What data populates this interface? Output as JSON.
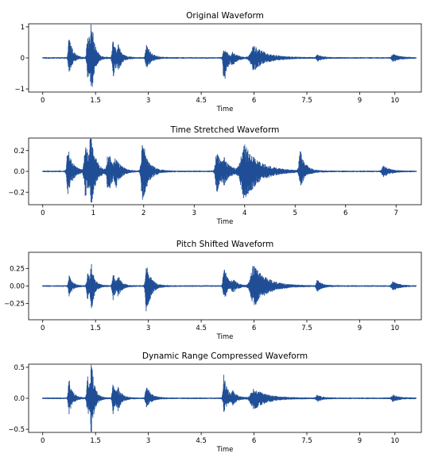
{
  "chart_data": [
    {
      "type": "line",
      "title": "Original Waveform",
      "xlabel": "Time",
      "ylabel": "",
      "xlim": [
        -0.4,
        10.75
      ],
      "ylim": [
        -1.1,
        1.1
      ],
      "xticks": [
        0,
        1.5,
        3,
        4.5,
        6,
        7.5,
        9,
        10
      ],
      "xtick_labels": [
        "0",
        "1.5",
        "3",
        "4.5",
        "6",
        "7.5",
        "9",
        "10"
      ],
      "yticks": [
        1,
        0,
        -1
      ],
      "ytick_labels": [
        "1",
        "0",
        "−1"
      ],
      "grid": false,
      "series": [
        {
          "color": "#1f4e96",
          "duration": 10.6,
          "envelope": [
            {
              "t": 0.75,
              "pos": 0.75,
              "neg": 0.55,
              "w": 0.06
            },
            {
              "t": 1.28,
              "pos": 0.95,
              "neg": 0.75,
              "w": 0.07
            },
            {
              "t": 1.38,
              "pos": 1.0,
              "neg": 1.0,
              "w": 0.05
            },
            {
              "t": 2.0,
              "pos": 0.55,
              "neg": 0.65,
              "w": 0.07
            },
            {
              "t": 2.15,
              "pos": 0.3,
              "neg": 0.25,
              "w": 0.06
            },
            {
              "t": 2.95,
              "pos": 0.45,
              "neg": 0.35,
              "w": 0.08
            },
            {
              "t": 5.15,
              "pos": 0.35,
              "neg": 0.85,
              "w": 0.07
            },
            {
              "t": 5.4,
              "pos": 0.15,
              "neg": 0.15,
              "w": 0.08
            },
            {
              "t": 6.0,
              "pos": 0.4,
              "neg": 0.4,
              "w": 0.22
            },
            {
              "t": 7.8,
              "pos": 0.1,
              "neg": 0.1,
              "w": 0.08
            },
            {
              "t": 9.95,
              "pos": 0.12,
              "neg": 0.12,
              "w": 0.1
            }
          ]
        }
      ]
    },
    {
      "type": "line",
      "title": "Time Stretched Waveform",
      "xlabel": "Time",
      "ylabel": "",
      "xlim": [
        -0.28,
        7.5
      ],
      "ylim": [
        -0.32,
        0.32
      ],
      "xticks": [
        0,
        1,
        2,
        3,
        4,
        5,
        6,
        7
      ],
      "xtick_labels": [
        "0",
        "1",
        "2",
        "3",
        "4",
        "5",
        "6",
        "7"
      ],
      "yticks": [
        0.2,
        0.0,
        -0.2
      ],
      "ytick_labels": [
        "0.2",
        "0.0",
        "−0.2"
      ],
      "grid": false,
      "series": [
        {
          "color": "#1f4e96",
          "duration": 7.4,
          "envelope": [
            {
              "t": 0.5,
              "pos": 0.22,
              "neg": 0.22,
              "w": 0.06
            },
            {
              "t": 0.85,
              "pos": 0.25,
              "neg": 0.25,
              "w": 0.07
            },
            {
              "t": 0.95,
              "pos": 0.3,
              "neg": 0.28,
              "w": 0.05
            },
            {
              "t": 1.3,
              "pos": 0.18,
              "neg": 0.2,
              "w": 0.07
            },
            {
              "t": 1.45,
              "pos": 0.1,
              "neg": 0.1,
              "w": 0.06
            },
            {
              "t": 1.98,
              "pos": 0.3,
              "neg": 0.3,
              "w": 0.07
            },
            {
              "t": 3.45,
              "pos": 0.2,
              "neg": 0.2,
              "w": 0.07
            },
            {
              "t": 3.6,
              "pos": 0.08,
              "neg": 0.08,
              "w": 0.08
            },
            {
              "t": 4.0,
              "pos": 0.25,
              "neg": 0.28,
              "w": 0.18
            },
            {
              "t": 5.1,
              "pos": 0.2,
              "neg": 0.15,
              "w": 0.06
            },
            {
              "t": 6.75,
              "pos": 0.05,
              "neg": 0.05,
              "w": 0.08
            }
          ]
        }
      ]
    },
    {
      "type": "line",
      "title": "Pitch Shifted Waveform",
      "xlabel": "Time",
      "ylabel": "",
      "xlim": [
        -0.4,
        10.75
      ],
      "ylim": [
        -0.48,
        0.48
      ],
      "xticks": [
        0,
        1.5,
        3,
        4.5,
        6,
        7.5,
        9,
        10
      ],
      "xtick_labels": [
        "0",
        "1.5",
        "3",
        "4.5",
        "6",
        "7.5",
        "9",
        "10"
      ],
      "yticks": [
        0.25,
        0.0,
        -0.25
      ],
      "ytick_labels": [
        "0.25",
        "0.00",
        "−0.25"
      ],
      "grid": false,
      "series": [
        {
          "color": "#1f4e96",
          "duration": 10.6,
          "envelope": [
            {
              "t": 0.75,
              "pos": 0.15,
              "neg": 0.15,
              "w": 0.06
            },
            {
              "t": 1.28,
              "pos": 0.2,
              "neg": 0.2,
              "w": 0.07
            },
            {
              "t": 1.38,
              "pos": 0.25,
              "neg": 0.3,
              "w": 0.05
            },
            {
              "t": 2.0,
              "pos": 0.18,
              "neg": 0.2,
              "w": 0.07
            },
            {
              "t": 2.15,
              "pos": 0.1,
              "neg": 0.1,
              "w": 0.06
            },
            {
              "t": 2.95,
              "pos": 0.3,
              "neg": 0.4,
              "w": 0.08
            },
            {
              "t": 5.15,
              "pos": 0.3,
              "neg": 0.2,
              "w": 0.07
            },
            {
              "t": 5.4,
              "pos": 0.08,
              "neg": 0.08,
              "w": 0.08
            },
            {
              "t": 6.0,
              "pos": 0.3,
              "neg": 0.3,
              "w": 0.22
            },
            {
              "t": 7.8,
              "pos": 0.08,
              "neg": 0.08,
              "w": 0.08
            },
            {
              "t": 9.95,
              "pos": 0.06,
              "neg": 0.06,
              "w": 0.1
            }
          ]
        }
      ]
    },
    {
      "type": "line",
      "title": "Dynamic Range Compressed Waveform",
      "xlabel": "Time",
      "ylabel": "",
      "xlim": [
        -0.4,
        10.75
      ],
      "ylim": [
        -0.55,
        0.55
      ],
      "xticks": [
        0,
        1.5,
        3,
        4.5,
        6,
        7.5,
        9,
        10
      ],
      "xtick_labels": [
        "0",
        "1.5",
        "3",
        "4.5",
        "6",
        "7.5",
        "9",
        "10"
      ],
      "yticks": [
        0.5,
        0.0,
        -0.5
      ],
      "ytick_labels": [
        "0.5",
        "0.0",
        "−0.5"
      ],
      "grid": false,
      "series": [
        {
          "color": "#1f4e96",
          "duration": 10.6,
          "envelope": [
            {
              "t": 0.75,
              "pos": 0.35,
              "neg": 0.25,
              "w": 0.06
            },
            {
              "t": 1.28,
              "pos": 0.35,
              "neg": 0.3,
              "w": 0.07
            },
            {
              "t": 1.38,
              "pos": 0.5,
              "neg": 0.5,
              "w": 0.05
            },
            {
              "t": 2.0,
              "pos": 0.25,
              "neg": 0.3,
              "w": 0.07
            },
            {
              "t": 2.15,
              "pos": 0.12,
              "neg": 0.12,
              "w": 0.06
            },
            {
              "t": 2.95,
              "pos": 0.2,
              "neg": 0.15,
              "w": 0.08
            },
            {
              "t": 5.15,
              "pos": 0.4,
              "neg": 0.22,
              "w": 0.07
            },
            {
              "t": 5.4,
              "pos": 0.08,
              "neg": 0.08,
              "w": 0.08
            },
            {
              "t": 6.0,
              "pos": 0.15,
              "neg": 0.18,
              "w": 0.22
            },
            {
              "t": 7.8,
              "pos": 0.05,
              "neg": 0.05,
              "w": 0.08
            },
            {
              "t": 9.95,
              "pos": 0.05,
              "neg": 0.05,
              "w": 0.1
            }
          ]
        }
      ]
    }
  ]
}
